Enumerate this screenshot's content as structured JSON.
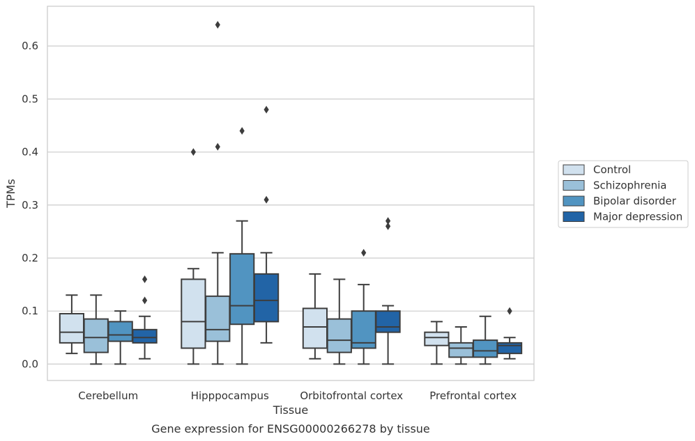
{
  "chart_data": {
    "type": "box",
    "xlabel": "Tissue",
    "ylabel": "TPMs",
    "caption": "Gene expression for ENSG00000266278 by tissue",
    "ylim": [
      -0.031,
      0.675
    ],
    "yticks": [
      0.0,
      0.1,
      0.2,
      0.3,
      0.4,
      0.5,
      0.6
    ],
    "ytick_labels": [
      "0.0",
      "0.1",
      "0.2",
      "0.3",
      "0.4",
      "0.5",
      "0.6"
    ],
    "grid": "horizontal",
    "legend_position": "right",
    "categories": [
      "Cerebellum",
      "Hipppocampus",
      "Orbitofrontal cortex",
      "Prefrontal cortex"
    ],
    "series": [
      {
        "name": "Control",
        "color": "#d1e1ee",
        "boxes": [
          {
            "whislo": 0.02,
            "q1": 0.04,
            "med": 0.06,
            "q3": 0.095,
            "whishi": 0.13,
            "fliers": []
          },
          {
            "whislo": 0.0,
            "q1": 0.03,
            "med": 0.08,
            "q3": 0.16,
            "whishi": 0.18,
            "fliers": [
              0.4
            ]
          },
          {
            "whislo": 0.01,
            "q1": 0.03,
            "med": 0.07,
            "q3": 0.105,
            "whishi": 0.17,
            "fliers": []
          },
          {
            "whislo": 0.0,
            "q1": 0.035,
            "med": 0.05,
            "q3": 0.06,
            "whishi": 0.08,
            "fliers": []
          }
        ]
      },
      {
        "name": "Schizophrenia",
        "color": "#9ac0d9",
        "boxes": [
          {
            "whislo": 0.0,
            "q1": 0.022,
            "med": 0.05,
            "q3": 0.085,
            "whishi": 0.13,
            "fliers": []
          },
          {
            "whislo": 0.0,
            "q1": 0.043,
            "med": 0.065,
            "q3": 0.128,
            "whishi": 0.21,
            "fliers": [
              0.41,
              0.64
            ]
          },
          {
            "whislo": 0.0,
            "q1": 0.022,
            "med": 0.045,
            "q3": 0.085,
            "whishi": 0.16,
            "fliers": []
          },
          {
            "whislo": 0.0,
            "q1": 0.013,
            "med": 0.03,
            "q3": 0.04,
            "whishi": 0.07,
            "fliers": []
          }
        ]
      },
      {
        "name": "Bipolar disorder",
        "color": "#5194c1",
        "boxes": [
          {
            "whislo": 0.0,
            "q1": 0.043,
            "med": 0.055,
            "q3": 0.08,
            "whishi": 0.1,
            "fliers": []
          },
          {
            "whislo": 0.0,
            "q1": 0.075,
            "med": 0.11,
            "q3": 0.208,
            "whishi": 0.27,
            "fliers": [
              0.44
            ]
          },
          {
            "whislo": 0.0,
            "q1": 0.03,
            "med": 0.04,
            "q3": 0.1,
            "whishi": 0.15,
            "fliers": [
              0.21
            ]
          },
          {
            "whislo": 0.0,
            "q1": 0.013,
            "med": 0.025,
            "q3": 0.045,
            "whishi": 0.09,
            "fliers": []
          }
        ]
      },
      {
        "name": "Major depression",
        "color": "#2264a6",
        "boxes": [
          {
            "whislo": 0.01,
            "q1": 0.04,
            "med": 0.05,
            "q3": 0.065,
            "whishi": 0.09,
            "fliers": [
              0.12,
              0.16
            ]
          },
          {
            "whislo": 0.04,
            "q1": 0.08,
            "med": 0.12,
            "q3": 0.17,
            "whishi": 0.21,
            "fliers": [
              0.31,
              0.48
            ]
          },
          {
            "whislo": 0.0,
            "q1": 0.06,
            "med": 0.07,
            "q3": 0.1,
            "whishi": 0.11,
            "fliers": [
              0.26,
              0.27
            ]
          },
          {
            "whislo": 0.01,
            "q1": 0.02,
            "med": 0.035,
            "q3": 0.04,
            "whishi": 0.05,
            "fliers": [
              0.1
            ]
          }
        ]
      }
    ]
  }
}
